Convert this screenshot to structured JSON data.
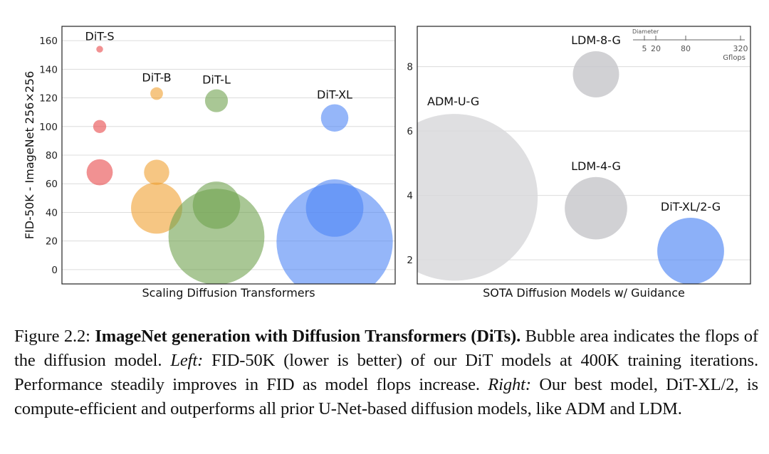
{
  "chart_data": [
    {
      "type": "scatter",
      "subtype": "bubble",
      "xlabel": "Scaling Diffusion Transformers",
      "ylabel": "FID-50K - ImageNet 256×256",
      "ylim": [
        -10,
        170
      ],
      "yticks": [
        0,
        20,
        40,
        60,
        80,
        100,
        120,
        140,
        160
      ],
      "grid": true,
      "bubble_size_meaning": "flops",
      "series": [
        {
          "name": "DiT-S",
          "color": "#e8474a",
          "points": [
            {
              "fid": 154,
              "gflops": 0.4
            },
            {
              "fid": 100,
              "gflops": 1.5
            },
            {
              "fid": 68,
              "gflops": 6
            }
          ]
        },
        {
          "name": "DiT-B",
          "color": "#f0a030",
          "points": [
            {
              "fid": 123,
              "gflops": 1.4
            },
            {
              "fid": 68,
              "gflops": 5.6
            },
            {
              "fid": 43,
              "gflops": 23
            }
          ]
        },
        {
          "name": "DiT-L",
          "color": "#6fa24e",
          "points": [
            {
              "fid": 118,
              "gflops": 4.6
            },
            {
              "fid": 45,
              "gflops": 19.7
            },
            {
              "fid": 23,
              "gflops": 80.7
            }
          ]
        },
        {
          "name": "DiT-XL",
          "color": "#4f86f5",
          "points": [
            {
              "fid": 106,
              "gflops": 6.6
            },
            {
              "fid": 43,
              "gflops": 29
            },
            {
              "fid": 19.5,
              "gflops": 118.6
            }
          ]
        }
      ]
    },
    {
      "type": "scatter",
      "subtype": "bubble",
      "xlabel": "SOTA Diffusion Models w/ Guidance",
      "ylim": [
        1.25,
        9.25
      ],
      "yticks": [
        2,
        4,
        6,
        8
      ],
      "grid": true,
      "size_legend": {
        "title": "Diameter",
        "ticks": [
          "5",
          "20",
          "80",
          "320"
        ],
        "unit": "Gflops",
        "position": "top-right"
      },
      "points": [
        {
          "name": "ADM-U-G",
          "fid": 3.94,
          "gflops": 742,
          "color": "#d9d9dc"
        },
        {
          "name": "LDM-8-G",
          "fid": 7.76,
          "gflops": 57,
          "color": "#c9c9cc"
        },
        {
          "name": "LDM-4-G",
          "fid": 3.6,
          "gflops": 104,
          "color": "#c9c9cc"
        },
        {
          "name": "DiT-XL/2-G",
          "fid": 2.27,
          "gflops": 119,
          "color": "#4f86f5"
        }
      ]
    }
  ],
  "caption": {
    "label": "Figure 2.2:",
    "title": "ImageNet generation with Diffusion Transformers (DiTs).",
    "text1": "Bubble area indicates the flops of the diffusion model.",
    "left_label": "Left:",
    "text2": "FID-50K (lower is better) of our DiT models at 400K training iterations. Performance steadily improves in FID as model flops increase.",
    "right_label": "Right:",
    "text3": "Our best model, DiT-XL/2, is compute-efficient and outperforms all prior U-Net-based diffusion models, like ADM and LDM."
  }
}
